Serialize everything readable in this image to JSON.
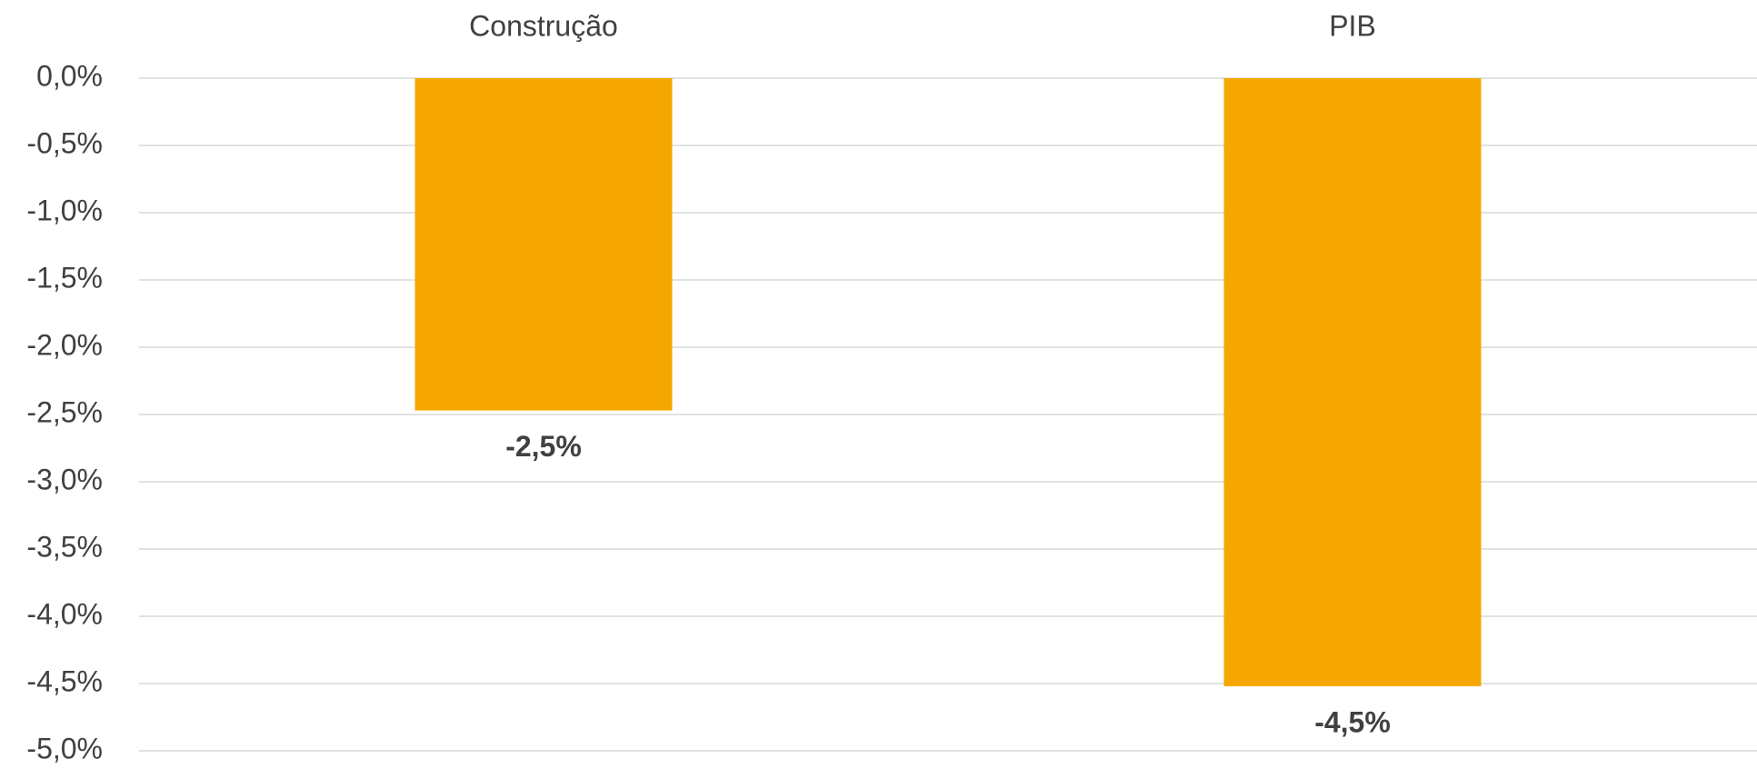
{
  "chart_data": {
    "type": "bar",
    "categories": [
      "Construção",
      "PIB"
    ],
    "values": [
      -2.47,
      -4.52
    ],
    "value_labels": [
      "-2,5%",
      "-4,5%"
    ],
    "color": "#f5a700",
    "ylim": [
      -5,
      0
    ],
    "yticks": [
      {
        "value": 0,
        "label": "0,0%"
      },
      {
        "value": -0.5,
        "label": "-0,5%"
      },
      {
        "value": -1,
        "label": "-1,0%"
      },
      {
        "value": -1.5,
        "label": "-1,5%"
      },
      {
        "value": -2,
        "label": "-2,0%"
      },
      {
        "value": -2.5,
        "label": "-2,5%"
      },
      {
        "value": -3,
        "label": "-3,0%"
      },
      {
        "value": -3.5,
        "label": "-3,5%"
      },
      {
        "value": -4,
        "label": "-4,0%"
      },
      {
        "value": -4.5,
        "label": "-4,5%"
      },
      {
        "value": -5,
        "label": "-5,0%"
      }
    ],
    "grid": true
  }
}
